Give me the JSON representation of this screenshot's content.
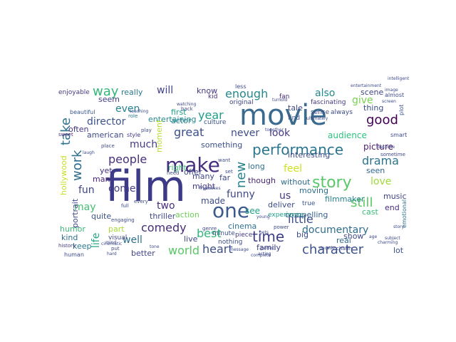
{
  "words": [
    {
      "text": "film",
      "color": "#3d3b87"
    },
    {
      "text": "movie",
      "color": "#3a6a8e"
    },
    {
      "text": "one",
      "color": "#3b5b8d"
    },
    {
      "text": "make",
      "color": "#452f7e"
    },
    {
      "text": "story",
      "color": "#5bc66a"
    },
    {
      "text": "performance",
      "color": "#2a768e"
    },
    {
      "text": "character",
      "color": "#3b528b"
    },
    {
      "text": "time",
      "color": "#3f3f89"
    },
    {
      "text": "documentary",
      "color": "#2d6e8e"
    },
    {
      "text": "comedy",
      "color": "#462b7a"
    },
    {
      "text": "heart",
      "color": "#3b4e8a"
    },
    {
      "text": "world",
      "color": "#58c765"
    },
    {
      "text": "little",
      "color": "#3d4e8a"
    },
    {
      "text": "drama",
      "color": "#2b748e"
    },
    {
      "text": "take",
      "color": "#2d718e"
    },
    {
      "text": "work",
      "color": "#2d6e8e"
    },
    {
      "text": "still",
      "color": "#5cc863"
    },
    {
      "text": "new",
      "color": "#26828e"
    },
    {
      "text": "great",
      "color": "#3c4f8a"
    },
    {
      "text": "good",
      "color": "#440154"
    },
    {
      "text": "way",
      "color": "#35b779"
    },
    {
      "text": "best",
      "color": "#2fb47c"
    },
    {
      "text": "people",
      "color": "#46307e"
    },
    {
      "text": "year",
      "color": "#1f9e89"
    },
    {
      "text": "enough",
      "color": "#23898e"
    },
    {
      "text": "may",
      "color": "#42be71"
    },
    {
      "text": "even",
      "color": "#26828e"
    },
    {
      "text": "much",
      "color": "#443a83"
    },
    {
      "text": "life",
      "color": "#22a785"
    },
    {
      "text": "director",
      "color": "#3b528b"
    },
    {
      "text": "look",
      "color": "#443983"
    },
    {
      "text": "never",
      "color": "#3e4c8a"
    },
    {
      "text": "also",
      "color": "#24878e"
    },
    {
      "text": "feel",
      "color": "#d2e21b"
    },
    {
      "text": "will",
      "color": "#414487"
    },
    {
      "text": "give",
      "color": "#7ad151"
    },
    {
      "text": "audience",
      "color": "#2ec27e"
    },
    {
      "text": "funny",
      "color": "#3f4889"
    },
    {
      "text": "us",
      "color": "#453781"
    },
    {
      "text": "love",
      "color": "#a0da39"
    },
    {
      "text": "made",
      "color": "#3d4d8a"
    },
    {
      "text": "see",
      "color": "#1fa088"
    },
    {
      "text": "come",
      "color": "#433e85"
    },
    {
      "text": "two",
      "color": "#472d7b"
    },
    {
      "text": "fun",
      "color": "#414487"
    },
    {
      "text": "well",
      "color": "#2d708e"
    },
    {
      "text": "picture",
      "color": "#481a6c"
    },
    {
      "text": "american",
      "color": "#3e4a89"
    },
    {
      "text": "entertaining",
      "color": "#23898e"
    },
    {
      "text": "thriller",
      "color": "#3f4788"
    },
    {
      "text": "cast",
      "color": "#3aba76"
    },
    {
      "text": "moment",
      "color": "#b5de2b"
    },
    {
      "text": "actor",
      "color": "#277f8e"
    },
    {
      "text": "action",
      "color": "#6ece58"
    },
    {
      "text": "something",
      "color": "#3c508b"
    },
    {
      "text": "really",
      "color": "#2a788e"
    },
    {
      "text": "really",
      "color": "#2a788e"
    },
    {
      "text": "thing",
      "color": "#3c4f8a"
    },
    {
      "text": "compelling",
      "color": "#34608d"
    },
    {
      "text": "filmmaker",
      "color": "#25838e"
    },
    {
      "text": "though",
      "color": "#482878"
    },
    {
      "text": "seen",
      "color": "#31678e"
    },
    {
      "text": "first",
      "color": "#1fa187"
    },
    {
      "text": "without",
      "color": "#2f6c8e"
    },
    {
      "text": "moving",
      "color": "#2e6f8e"
    },
    {
      "text": "tale",
      "color": "#3e4989"
    },
    {
      "text": "know",
      "color": "#443983"
    },
    {
      "text": "might",
      "color": "#443983"
    },
    {
      "text": "many",
      "color": "#3e4a89"
    },
    {
      "text": "humor",
      "color": "#3aba76"
    },
    {
      "text": "scene",
      "color": "#414487"
    },
    {
      "text": "kind",
      "color": "#2d708e"
    },
    {
      "text": "keep",
      "color": "#2a788e"
    },
    {
      "text": "part",
      "color": "#a8db34"
    },
    {
      "text": "seem",
      "color": "#433e85"
    },
    {
      "text": "end",
      "color": "#462c7b"
    },
    {
      "text": "offer",
      "color": "#3f4788"
    },
    {
      "text": "right",
      "color": "#3aba76"
    },
    {
      "text": "far",
      "color": "#3e4a89"
    },
    {
      "text": "long",
      "color": "#2d708e"
    },
    {
      "text": "interesting",
      "color": "#3d4d8a"
    },
    {
      "text": "big",
      "color": "#3d4d8a"
    },
    {
      "text": "live",
      "color": "#3f4788"
    },
    {
      "text": "family",
      "color": "#414487"
    },
    {
      "text": "real",
      "color": "#2f6b8e"
    },
    {
      "text": "lot",
      "color": "#3a548c"
    },
    {
      "text": "show",
      "color": "#3e4a89"
    },
    {
      "text": "music",
      "color": "#414487"
    },
    {
      "text": "often",
      "color": "#453882"
    },
    {
      "text": "yet",
      "color": "#46307e"
    },
    {
      "text": "hollywood",
      "color": "#c8e020"
    },
    {
      "text": "portrait",
      "color": "#3f4889"
    },
    {
      "text": "man",
      "color": "#482173"
    },
    {
      "text": "better",
      "color": "#414487"
    },
    {
      "text": "quite",
      "color": "#3b528b"
    },
    {
      "text": "visual",
      "color": "#3f4788"
    },
    {
      "text": "nothing",
      "color": "#3e4c8a"
    },
    {
      "text": "cinema",
      "color": "#2d708e"
    },
    {
      "text": "experience",
      "color": "#1f9e89"
    },
    {
      "text": "piece",
      "color": "#443983"
    },
    {
      "text": "minute",
      "color": "#3a548c"
    },
    {
      "text": "deliver",
      "color": "#3e4a89"
    },
    {
      "text": "true",
      "color": "#39568c"
    },
    {
      "text": "original",
      "color": "#3f4788"
    },
    {
      "text": "culture",
      "color": "#3b528b"
    },
    {
      "text": "sense",
      "color": "#3d4d8a"
    },
    {
      "text": "fascinating",
      "color": "#453882"
    },
    {
      "text": "always",
      "color": "#3e4a89"
    },
    {
      "text": "find",
      "color": "#3b528b"
    },
    {
      "text": "fan",
      "color": "#482878"
    },
    {
      "text": "kid",
      "color": "#46307e"
    },
    {
      "text": "less",
      "color": "#3e4a89"
    },
    {
      "text": "enjoyable",
      "color": "#453882"
    },
    {
      "text": "beautiful",
      "color": "#39568c"
    },
    {
      "text": "almost",
      "color": "#3e4a89"
    },
    {
      "text": "plot",
      "color": "#3b528b"
    },
    {
      "text": "smart",
      "color": "#3e4a89"
    },
    {
      "text": "human",
      "color": "#3e4a89"
    },
    {
      "text": "emotional",
      "color": "#2d708e"
    },
    {
      "text": "entertainment",
      "color": "#3e4a89"
    },
    {
      "text": "style",
      "color": "#443983"
    },
    {
      "text": "sweet",
      "color": "#482878"
    },
    {
      "text": "history",
      "color": "#453882"
    },
    {
      "text": "role",
      "color": "#2a788e"
    },
    {
      "text": "every",
      "color": "#3e4a89"
    },
    {
      "text": "place",
      "color": "#3e4a89"
    },
    {
      "text": "engaging",
      "color": "#3e4a89"
    },
    {
      "text": "full",
      "color": "#3e4a89"
    },
    {
      "text": "genre",
      "color": "#3e4a89"
    },
    {
      "text": "charm",
      "color": "#3e4a89"
    },
    {
      "text": "need",
      "color": "#3e4a89"
    },
    {
      "text": "power",
      "color": "#3e4a89"
    },
    {
      "text": "sometime",
      "color": "#3e4a89"
    },
    {
      "text": "play",
      "color": "#3e4a89"
    },
    {
      "text": "want",
      "color": "#3e4a89"
    },
    {
      "text": "set",
      "color": "#3e4a89"
    },
    {
      "text": "back",
      "color": "#3e4a89"
    },
    {
      "text": "put",
      "color": "#3e4a89"
    },
    {
      "text": "mind",
      "color": "#3e4a89"
    },
    {
      "text": "hard",
      "color": "#3e4a89"
    },
    {
      "text": "watching",
      "color": "#3e4a89"
    },
    {
      "text": "become",
      "color": "#3e4a89"
    },
    {
      "text": "screen",
      "color": "#3e4a89"
    },
    {
      "text": "intelligent",
      "color": "#3e4a89"
    },
    {
      "text": "image",
      "color": "#3e4a89"
    },
    {
      "text": "touching",
      "color": "#3e4a89"
    },
    {
      "text": "turn",
      "color": "#3e4a89"
    },
    {
      "text": "old",
      "color": "#3e4a89"
    },
    {
      "text": "makes",
      "color": "#3e4a89"
    },
    {
      "text": "together",
      "color": "#3e4a89"
    },
    {
      "text": "acting",
      "color": "#3e4a89"
    },
    {
      "text": "perfect",
      "color": "#3e4a89"
    },
    {
      "text": "laugh",
      "color": "#3e4a89"
    },
    {
      "text": "cinematic",
      "color": "#3e4a89"
    },
    {
      "text": "tone",
      "color": "#3e4a89"
    },
    {
      "text": "fresh",
      "color": "#3e4a89"
    },
    {
      "text": "message",
      "color": "#3e4a89"
    },
    {
      "text": "ultimately",
      "color": "#3e4a89"
    },
    {
      "text": "charming",
      "color": "#3e4a89"
    },
    {
      "text": "complete",
      "color": "#3e4a89"
    },
    {
      "text": "decade",
      "color": "#3e4a89"
    },
    {
      "text": "age",
      "color": "#3e4a89"
    },
    {
      "text": "subject",
      "color": "#3e4a89"
    },
    {
      "text": "gets",
      "color": "#3e4a89"
    },
    {
      "text": "story",
      "color": "#3e4a89"
    },
    {
      "text": "young",
      "color": "#3e4a89"
    }
  ]
}
